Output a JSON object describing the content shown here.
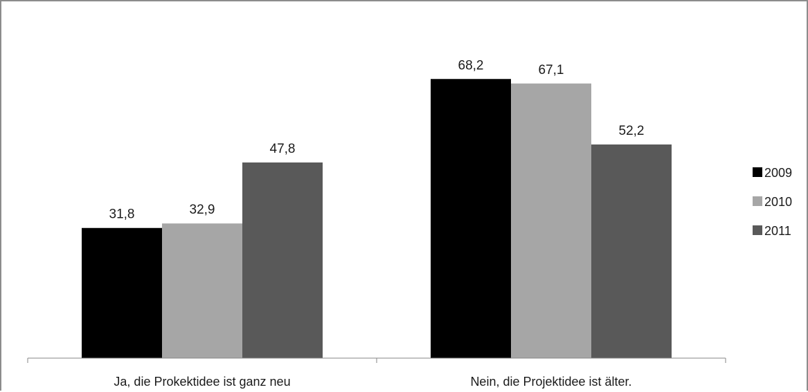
{
  "chart_data": {
    "type": "bar",
    "categories": [
      "Ja, die Prokektidee ist ganz neu",
      "Nein, die Projektidee ist älter."
    ],
    "series": [
      {
        "name": "2009",
        "values": [
          31.8,
          68.2
        ],
        "labels": [
          "31,8",
          "68,2"
        ],
        "color": "#000000"
      },
      {
        "name": "2010",
        "values": [
          32.9,
          67.1
        ],
        "labels": [
          "32,9",
          "67,1"
        ],
        "color": "#a6a6a6"
      },
      {
        "name": "2011",
        "values": [
          47.8,
          52.2
        ],
        "labels": [
          "47,8",
          "52,2"
        ],
        "color": "#595959"
      }
    ],
    "ylim": [
      0,
      80
    ],
    "grid": false,
    "legend_position": "right",
    "axis_color": "#868686"
  }
}
